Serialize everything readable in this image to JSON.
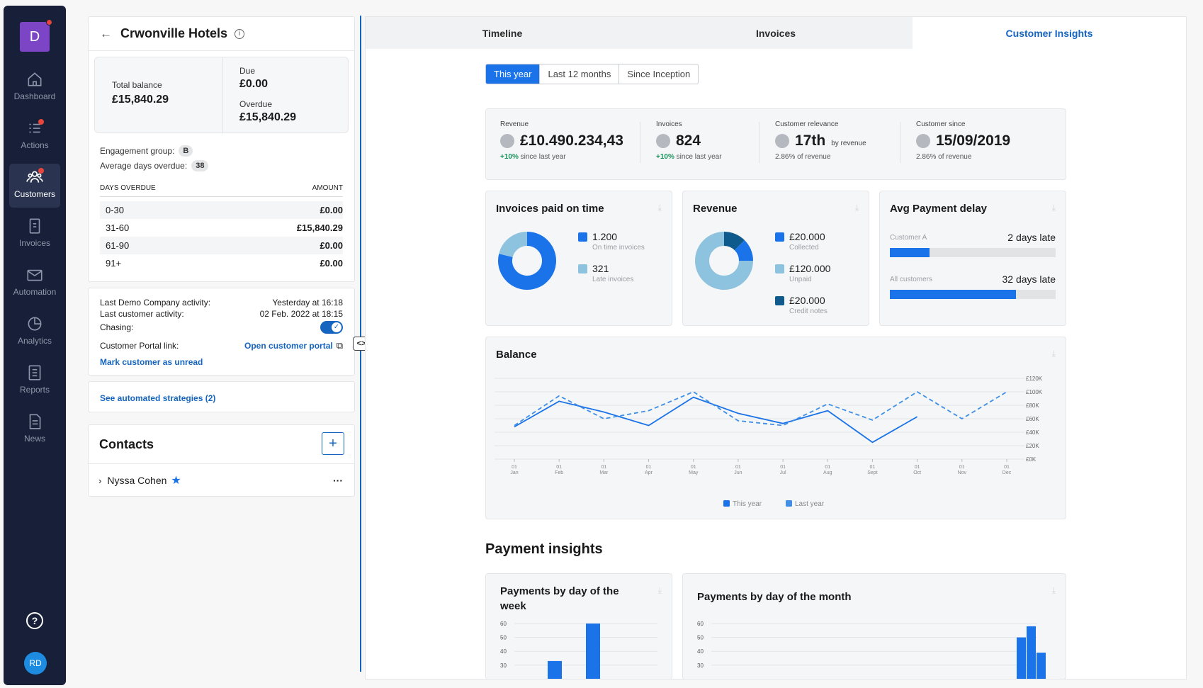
{
  "workspace": {
    "initial": "D"
  },
  "nav": [
    {
      "label": "Dashboard",
      "icon": "home-icon"
    },
    {
      "label": "Actions",
      "icon": "list-icon"
    },
    {
      "label": "Customers",
      "icon": "users-icon"
    },
    {
      "label": "Invoices",
      "icon": "receipt-icon"
    },
    {
      "label": "Automation",
      "icon": "mail-icon"
    },
    {
      "label": "Analytics",
      "icon": "pie-chart-icon"
    },
    {
      "label": "Reports",
      "icon": "report-icon"
    },
    {
      "label": "News",
      "icon": "document-icon"
    }
  ],
  "user": {
    "initials": "RD"
  },
  "customer": {
    "name": "Crwonville Hotels",
    "total_balance_label": "Total balance",
    "total_balance": "£15,840.29",
    "due_label": "Due",
    "due": "£0.00",
    "overdue_label": "Overdue",
    "overdue": "£15,840.29",
    "engagement_label": "Engagement group:",
    "engagement": "B",
    "avg_days_label": "Average days overdue:",
    "avg_days": "38",
    "days_overdue_header": "DAYS OVERDUE",
    "amount_header": "AMOUNT",
    "aging": [
      {
        "range": "0-30",
        "amount": "£0.00"
      },
      {
        "range": "31-60",
        "amount": "£15,840.29"
      },
      {
        "range": "61-90",
        "amount": "£0.00"
      },
      {
        "range": "91+",
        "amount": "£0.00"
      }
    ]
  },
  "activity": {
    "demo_label": "Last Demo Company activity:",
    "demo_value": "Yesterday at 16:18",
    "cust_label": "Last customer activity:",
    "cust_value": "02 Feb. 2022 at 18:15",
    "chasing_label": "Chasing:",
    "chasing_on": true,
    "portal_label": "Customer Portal link:",
    "portal_link": "Open customer portal",
    "mark_unread": "Mark customer as unread"
  },
  "strategies": {
    "link": "See automated strategies (2)"
  },
  "contacts": {
    "title": "Contacts",
    "add": "+",
    "items": [
      {
        "name": "Nyssa Cohen"
      }
    ],
    "more": "···"
  },
  "tabs": [
    {
      "label": "Timeline"
    },
    {
      "label": "Invoices"
    },
    {
      "label": "Customer Insights"
    }
  ],
  "periods": [
    "This year",
    "Last 12 months",
    "Since Inception"
  ],
  "kpis": [
    {
      "label": "Revenue",
      "value": "£10.490.234,43",
      "change": "+10%",
      "sub": "since last year"
    },
    {
      "label": "Invoices",
      "value": "824",
      "change": "+10%",
      "sub": "since last year"
    },
    {
      "label": "Customer relevance",
      "value": "17th",
      "by": "by revenue",
      "sub": "2.86% of revenue"
    },
    {
      "label": "Customer since",
      "value": "15/09/2019",
      "sub": "2.86% of revenue"
    }
  ],
  "paid_on_time": {
    "title": "Invoices paid on time",
    "items": [
      {
        "value": "1.200",
        "label": "On time invoices",
        "color": "#1a73e8",
        "share": 1200
      },
      {
        "value": "321",
        "label": "Late invoices",
        "color": "#8ec3df",
        "share": 321
      }
    ]
  },
  "revenue_card": {
    "title": "Revenue",
    "items": [
      {
        "value": "£20.000",
        "label": "Collected",
        "color": "#1a73e8",
        "share": 20000
      },
      {
        "value": "£120.000",
        "label": "Unpaid",
        "color": "#8ec3df",
        "share": 120000
      },
      {
        "value": "£20.000",
        "label": "Credit notes",
        "color": "#0f5a8c",
        "share": 20000
      }
    ]
  },
  "delay": {
    "title": "Avg Payment delay",
    "rows": [
      {
        "label": "Customer A",
        "value": "2 days late",
        "fraction": 0.24
      },
      {
        "label": "All customers",
        "value": "32 days late",
        "fraction": 0.76
      }
    ]
  },
  "chart_data": [
    {
      "type": "line",
      "title": "Balance",
      "categories": [
        "01 Jan",
        "01 Feb",
        "01 Mar",
        "01 Apr",
        "01 May",
        "01 Jun",
        "01 Jul",
        "01 Aug",
        "01 Sept",
        "01 Oct",
        "01 Nov",
        "01 Dec"
      ],
      "yticks": [
        "£0K",
        "£20K",
        "£40K",
        "£60K",
        "£80K",
        "£100K",
        "£120K"
      ],
      "ylim": [
        0,
        120000
      ],
      "series": [
        {
          "name": "This year",
          "color": "#1a73e8",
          "dashed": false,
          "values": [
            48000,
            86000,
            70000,
            50000,
            92000,
            68000,
            53000,
            72000,
            25000,
            63000,
            null,
            null
          ]
        },
        {
          "name": "Last year",
          "color": "#3f8fe6",
          "dashed": true,
          "values": [
            50000,
            94000,
            60000,
            72000,
            100000,
            57000,
            50000,
            82000,
            58000,
            100000,
            60000,
            100000
          ]
        }
      ]
    },
    {
      "type": "bar",
      "title": "Payments by day of the week",
      "yticks": [
        "30",
        "40",
        "50",
        "60"
      ],
      "ylim": [
        30,
        65
      ],
      "values": [
        null,
        33,
        60
      ],
      "color": "#1a73e8"
    },
    {
      "type": "bar",
      "title": "Payments by day of the month",
      "yticks": [
        "30",
        "40",
        "50",
        "60"
      ],
      "ylim": [
        30,
        65
      ],
      "values": [
        50,
        58,
        39
      ],
      "color": "#1a73e8"
    }
  ],
  "payment_insights": {
    "title": "Payment insights"
  }
}
